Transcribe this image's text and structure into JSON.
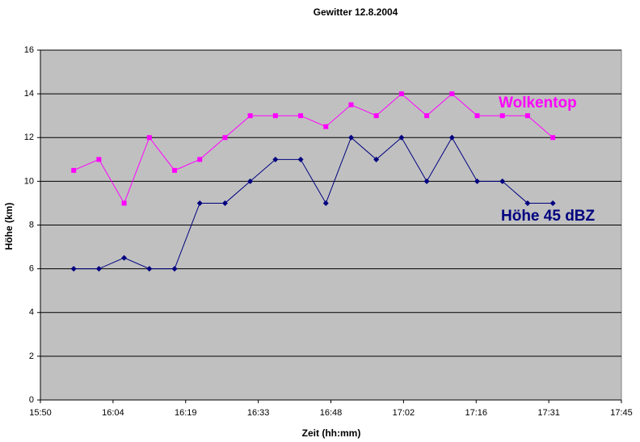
{
  "chart_data": {
    "type": "line",
    "title": "Gewitter 12.8.2004",
    "x_label": "Zeit (hh:mm)",
    "y_label": "Höhe (km)",
    "x": [
      957,
      962,
      967,
      972,
      977,
      982,
      987,
      992,
      997,
      1002,
      1007,
      1012,
      1017,
      1022,
      1027,
      1032,
      1037,
      1042,
      1047,
      1052
    ],
    "series": [
      {
        "name": "Wolkentop",
        "color": "#ff00ff",
        "marker": "square",
        "values": [
          10.5,
          11,
          9,
          12,
          10.5,
          11,
          12,
          13,
          13,
          13,
          12.5,
          13.5,
          13,
          14,
          13,
          14,
          13,
          13,
          13,
          12
        ]
      },
      {
        "name": "Höhe 45 dBZ",
        "color": "#000080",
        "marker": "diamond",
        "values": [
          6,
          6,
          6.5,
          6,
          6,
          9,
          9,
          10,
          11,
          11,
          9,
          12,
          11,
          12,
          10,
          12,
          10,
          10,
          9,
          9
        ]
      }
    ],
    "xlim": [
      950.4,
      1065.6
    ],
    "xticks": [
      {
        "value": 950.4,
        "label": "15:50"
      },
      {
        "value": 964.8,
        "label": "16:04"
      },
      {
        "value": 979.2,
        "label": "16:19"
      },
      {
        "value": 993.6,
        "label": "16:33"
      },
      {
        "value": 1008,
        "label": "16:48"
      },
      {
        "value": 1022.4,
        "label": "17:02"
      },
      {
        "value": 1036.8,
        "label": "17:16"
      },
      {
        "value": 1051.2,
        "label": "17:31"
      },
      {
        "value": 1065.6,
        "label": "17:45"
      }
    ],
    "ylim": [
      0,
      16
    ],
    "yticks": [
      0,
      2,
      4,
      6,
      8,
      10,
      12,
      14,
      16
    ],
    "grid": true,
    "plot_background": "#c0c0c0"
  }
}
